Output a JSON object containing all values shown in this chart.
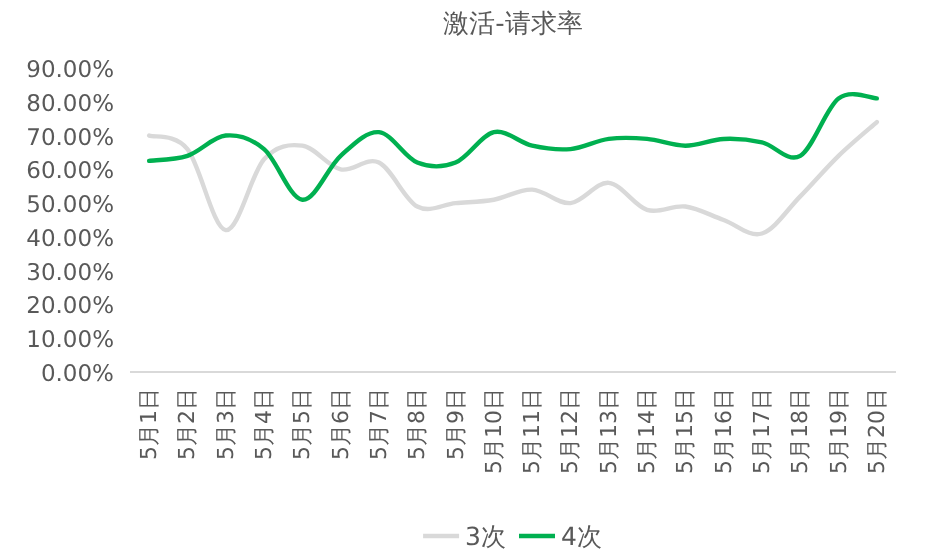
{
  "chart_data": {
    "type": "line",
    "title": "激活-请求率",
    "categories": [
      "5月1日",
      "5月2日",
      "5月3日",
      "5月4日",
      "5月5日",
      "5月6日",
      "5月7日",
      "5月8日",
      "5月9日",
      "5月10日",
      "5月11日",
      "5月12日",
      "5月13日",
      "5月14日",
      "5月15日",
      "5月16日",
      "5月17日",
      "5月18日",
      "5月19日",
      "5月20日"
    ],
    "series": [
      {
        "name": "3次",
        "color": "#d9d9d9",
        "values": [
          70,
          66,
          42,
          63,
          67,
          60,
          62,
          49,
          50,
          51,
          54,
          50,
          56,
          48,
          49,
          45,
          41,
          52,
          64,
          74
        ]
      },
      {
        "name": "4次",
        "color": "#00b050",
        "values": [
          62.5,
          64,
          70,
          66,
          51,
          64,
          71,
          62,
          62,
          71,
          67,
          66,
          69,
          69,
          67,
          69,
          68,
          64,
          81,
          81
        ]
      }
    ],
    "ylim": [
      0,
      90
    ],
    "yticks": [
      {
        "value": 0,
        "label": "0.00%"
      },
      {
        "value": 10,
        "label": "10.00%"
      },
      {
        "value": 20,
        "label": "20.00%"
      },
      {
        "value": 30,
        "label": "30.00%"
      },
      {
        "value": 40,
        "label": "40.00%"
      },
      {
        "value": 50,
        "label": "50.00%"
      },
      {
        "value": 60,
        "label": "60.00%"
      },
      {
        "value": 70,
        "label": "70.00%"
      },
      {
        "value": 80,
        "label": "80.00%"
      },
      {
        "value": 90,
        "label": "90.00%"
      }
    ],
    "grid": false,
    "legend": "bottom",
    "marker": "none",
    "line_style": "solid"
  }
}
